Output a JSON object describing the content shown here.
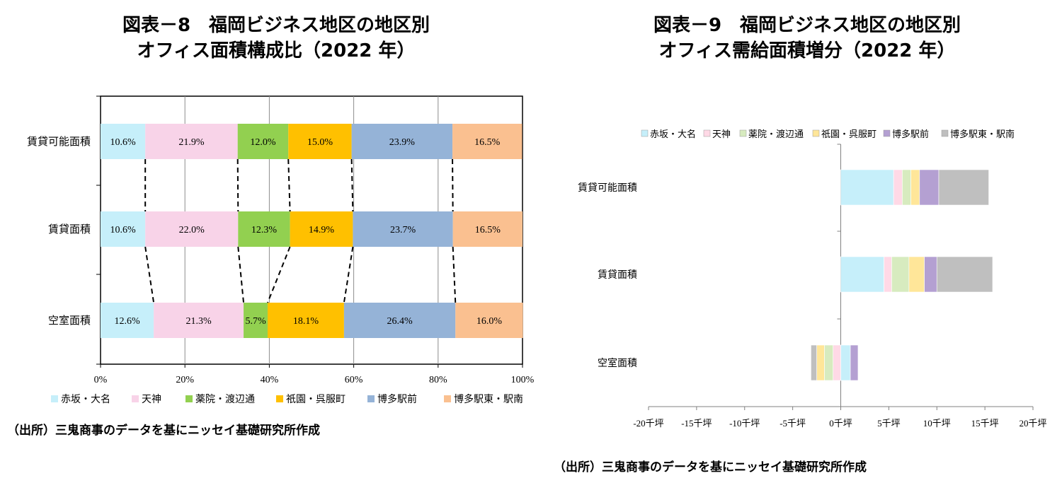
{
  "charts": [
    {
      "title_line1": "図表－8　福岡ビジネス地区の地区別",
      "title_line2": "オフィス面積構成比（2022 年）",
      "source": "（出所）三鬼商事のデータを基にニッセイ基礎研究所作成"
    },
    {
      "title_line1": "図表－9　福岡ビジネス地区の地区別",
      "title_line2": "オフィス需給面積増分（2022 年）",
      "source": "（出所）三鬼商事のデータを基にニッセイ基礎研究所作成"
    }
  ],
  "chart_data": [
    {
      "type": "bar",
      "orientation": "horizontal",
      "stacked": "percent",
      "title": "図表－8　福岡ビジネス地区の地区別 オフィス面積構成比（2022 年）",
      "categories": [
        "賃貸可能面積",
        "賃貸面積",
        "空室面積"
      ],
      "series": [
        {
          "name": "赤坂・大名",
          "color": "#c6effa",
          "values": [
            10.6,
            10.6,
            12.6
          ],
          "labels": [
            "10.6%",
            "10.6%",
            "12.6%"
          ]
        },
        {
          "name": "天神",
          "color": "#f8d3e8",
          "values": [
            21.9,
            22.0,
            21.3
          ],
          "labels": [
            "21.9%",
            "22.0%",
            "21.3%"
          ]
        },
        {
          "name": "薬院・渡辺通",
          "color": "#92d050",
          "values": [
            12.0,
            12.3,
            5.7
          ],
          "labels": [
            "12.0%",
            "12.3%",
            "5.7%"
          ]
        },
        {
          "name": "祇園・呉服町",
          "color": "#ffc000",
          "values": [
            15.0,
            14.9,
            18.1
          ],
          "labels": [
            "15.0%",
            "14.9%",
            "18.1%"
          ]
        },
        {
          "name": "博多駅前",
          "color": "#95b3d7",
          "values": [
            23.9,
            23.7,
            26.4
          ],
          "labels": [
            "23.9%",
            "23.7%",
            "26.4%"
          ]
        },
        {
          "name": "博多駅東・駅南",
          "color": "#fac090",
          "values": [
            16.5,
            16.5,
            16.0
          ],
          "labels": [
            "16.5%",
            "16.5%",
            "16.0%"
          ]
        }
      ],
      "x_ticks": [
        "0%",
        "20%",
        "40%",
        "60%",
        "80%",
        "100%"
      ],
      "xlim": [
        0,
        100
      ],
      "grid": true,
      "legend": "bottom",
      "connector_lines": "dashed"
    },
    {
      "type": "bar",
      "orientation": "horizontal",
      "stacked": true,
      "title": "図表－9　福岡ビジネス地区の地区別 オフィス需給面積増分（2022 年）",
      "categories": [
        "賃貸可能面積",
        "賃貸面積",
        "空室面積"
      ],
      "unit": "千坪",
      "series": [
        {
          "name": "赤坂・大名",
          "color": "#c6effa",
          "values": [
            5.5,
            4.5,
            1.0
          ]
        },
        {
          "name": "天神",
          "color": "#ffd9e6",
          "values": [
            0.9,
            0.8,
            -0.8
          ]
        },
        {
          "name": "薬院・渡辺通",
          "color": "#d7ebbf",
          "values": [
            0.9,
            1.8,
            -0.9
          ]
        },
        {
          "name": "祇園・呉服町",
          "color": "#ffe699",
          "values": [
            0.9,
            1.6,
            -0.8
          ]
        },
        {
          "name": "博多駅前",
          "color": "#b4a0d2",
          "values": [
            2.0,
            1.3,
            0.8
          ]
        },
        {
          "name": "博多駅東・駅南",
          "color": "#bfbfbf",
          "values": [
            5.2,
            5.8,
            -0.6
          ]
        }
      ],
      "x_ticks": [
        "-20千坪",
        "-15千坪",
        "-10千坪",
        "-5千坪",
        "0千坪",
        "5千坪",
        "10千坪",
        "15千坪",
        "20千坪"
      ],
      "xlim": [
        -20,
        20
      ],
      "grid": false,
      "legend": "top"
    }
  ]
}
